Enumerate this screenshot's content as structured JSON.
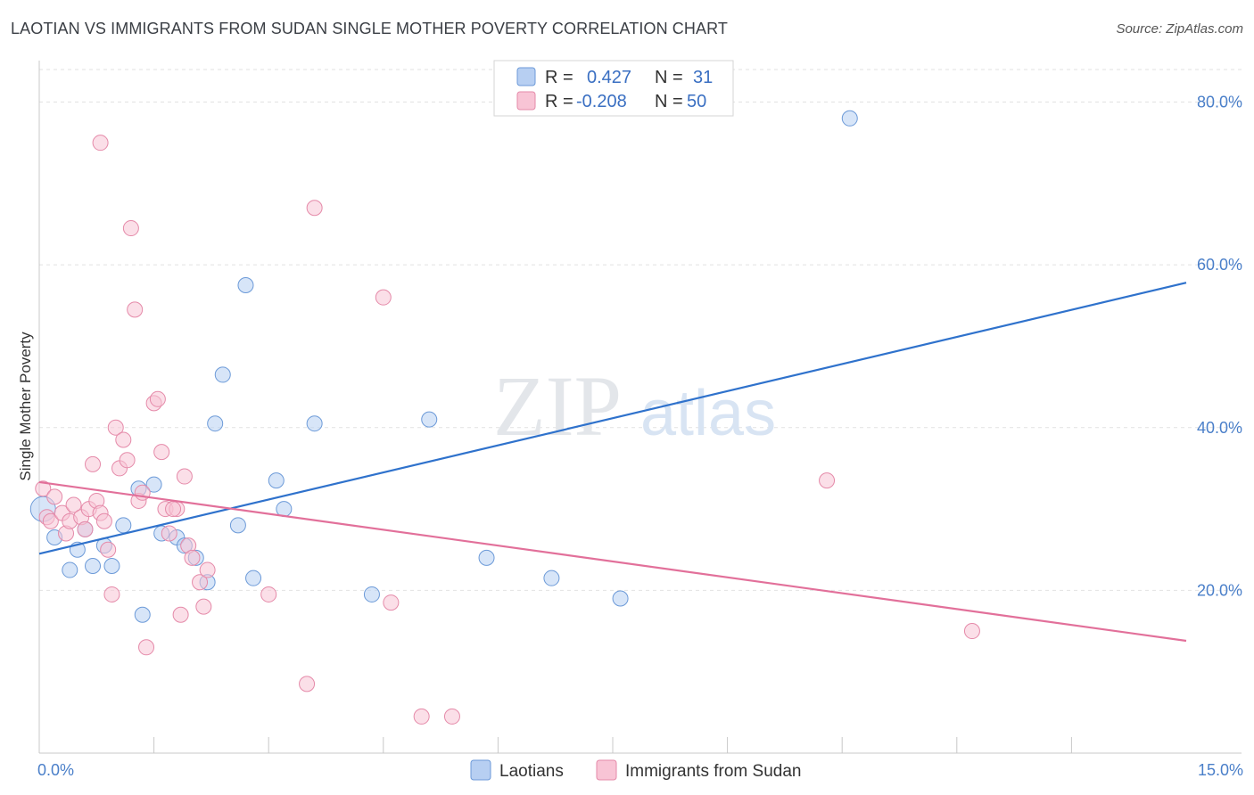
{
  "title": "LAOTIAN VS IMMIGRANTS FROM SUDAN SINGLE MOTHER POVERTY CORRELATION CHART",
  "source": "Source: ZipAtlas.com",
  "watermark": {
    "zip": "ZIP",
    "atlas": "atlas"
  },
  "legend": {
    "r_label": "R =",
    "n_label": "N =",
    "series": [
      {
        "r": "0.427",
        "n": "31",
        "color": "#b7cff2",
        "edge": "#6c9ad8"
      },
      {
        "r": "-0.208",
        "n": "50",
        "color": "#f8c4d5",
        "edge": "#e58aa9"
      }
    ]
  },
  "chart_data": {
    "type": "scatter",
    "title": "LAOTIAN VS IMMIGRANTS FROM SUDAN SINGLE MOTHER POVERTY CORRELATION CHART",
    "xlabel": "",
    "ylabel": "Single Mother Poverty",
    "xlim": [
      0,
      15
    ],
    "ylim": [
      0,
      84
    ],
    "x_tick_labels": [
      {
        "value": 0,
        "label": "0.0%"
      },
      {
        "value": 15,
        "label": "15.0%"
      }
    ],
    "y_tick_labels": [
      {
        "value": 20,
        "label": "20.0%"
      },
      {
        "value": 40,
        "label": "40.0%"
      },
      {
        "value": 60,
        "label": "60.0%"
      },
      {
        "value": 80,
        "label": "80.0%"
      }
    ],
    "x_minor_ticks": [
      1.5,
      3,
      4.5,
      6,
      7.5,
      9,
      10.5,
      12,
      13.5
    ],
    "grid": true,
    "legend_position": "top-center",
    "series": [
      {
        "name": "Laotians",
        "color": "#b7cff2",
        "edge": "#6c9ad8",
        "line_color": "#2f72cc",
        "trend": {
          "x": [
            0,
            15
          ],
          "y": [
            24.5,
            57.8
          ]
        },
        "points": [
          {
            "x": 0.05,
            "y": 30.0,
            "s": 28
          },
          {
            "x": 0.2,
            "y": 26.5
          },
          {
            "x": 0.4,
            "y": 22.5
          },
          {
            "x": 0.5,
            "y": 25.0
          },
          {
            "x": 0.6,
            "y": 27.5
          },
          {
            "x": 0.7,
            "y": 23.0
          },
          {
            "x": 0.85,
            "y": 25.5
          },
          {
            "x": 0.95,
            "y": 23.0
          },
          {
            "x": 1.1,
            "y": 28.0
          },
          {
            "x": 1.3,
            "y": 32.5
          },
          {
            "x": 1.35,
            "y": 17.0
          },
          {
            "x": 1.5,
            "y": 33.0
          },
          {
            "x": 1.6,
            "y": 27.0
          },
          {
            "x": 1.8,
            "y": 26.5
          },
          {
            "x": 1.9,
            "y": 25.5
          },
          {
            "x": 2.05,
            "y": 24.0
          },
          {
            "x": 2.2,
            "y": 21.0
          },
          {
            "x": 2.3,
            "y": 40.5
          },
          {
            "x": 2.4,
            "y": 46.5
          },
          {
            "x": 2.6,
            "y": 28.0
          },
          {
            "x": 2.7,
            "y": 57.5
          },
          {
            "x": 2.8,
            "y": 21.5
          },
          {
            "x": 3.1,
            "y": 33.5
          },
          {
            "x": 3.2,
            "y": 30.0
          },
          {
            "x": 3.6,
            "y": 40.5
          },
          {
            "x": 4.35,
            "y": 19.5
          },
          {
            "x": 5.1,
            "y": 41.0
          },
          {
            "x": 5.85,
            "y": 24.0
          },
          {
            "x": 6.7,
            "y": 21.5
          },
          {
            "x": 7.6,
            "y": 19.0
          },
          {
            "x": 10.6,
            "y": 78.0
          }
        ]
      },
      {
        "name": "Immigrants from Sudan",
        "color": "#f8c4d5",
        "edge": "#e58aa9",
        "line_color": "#e2709a",
        "trend": {
          "x": [
            0,
            15
          ],
          "y": [
            33.3,
            13.8
          ]
        },
        "points": [
          {
            "x": 0.05,
            "y": 32.5
          },
          {
            "x": 0.1,
            "y": 29.0
          },
          {
            "x": 0.15,
            "y": 28.5
          },
          {
            "x": 0.2,
            "y": 31.5
          },
          {
            "x": 0.3,
            "y": 29.5
          },
          {
            "x": 0.35,
            "y": 27.0
          },
          {
            "x": 0.4,
            "y": 28.5
          },
          {
            "x": 0.45,
            "y": 30.5
          },
          {
            "x": 0.55,
            "y": 29.0
          },
          {
            "x": 0.6,
            "y": 27.5
          },
          {
            "x": 0.65,
            "y": 30.0
          },
          {
            "x": 0.7,
            "y": 35.5
          },
          {
            "x": 0.75,
            "y": 31.0
          },
          {
            "x": 0.8,
            "y": 29.5
          },
          {
            "x": 0.85,
            "y": 28.5
          },
          {
            "x": 0.9,
            "y": 25.0
          },
          {
            "x": 0.95,
            "y": 19.5
          },
          {
            "x": 1.0,
            "y": 40.0
          },
          {
            "x": 1.05,
            "y": 35.0
          },
          {
            "x": 1.1,
            "y": 38.5
          },
          {
            "x": 1.15,
            "y": 36.0
          },
          {
            "x": 1.25,
            "y": 54.5
          },
          {
            "x": 1.3,
            "y": 31.0
          },
          {
            "x": 1.35,
            "y": 32.0
          },
          {
            "x": 1.4,
            "y": 13.0
          },
          {
            "x": 1.5,
            "y": 43.0
          },
          {
            "x": 1.55,
            "y": 43.5
          },
          {
            "x": 1.6,
            "y": 37.0
          },
          {
            "x": 1.65,
            "y": 30.0
          },
          {
            "x": 1.7,
            "y": 27.0
          },
          {
            "x": 1.8,
            "y": 30.0
          },
          {
            "x": 1.85,
            "y": 17.0
          },
          {
            "x": 1.9,
            "y": 34.0
          },
          {
            "x": 1.95,
            "y": 25.5
          },
          {
            "x": 2.0,
            "y": 24.0
          },
          {
            "x": 2.1,
            "y": 21.0
          },
          {
            "x": 2.15,
            "y": 18.0
          },
          {
            "x": 2.2,
            "y": 22.5
          },
          {
            "x": 3.0,
            "y": 19.5
          },
          {
            "x": 3.5,
            "y": 8.5
          },
          {
            "x": 3.6,
            "y": 67.0
          },
          {
            "x": 4.5,
            "y": 56.0
          },
          {
            "x": 4.6,
            "y": 18.5
          },
          {
            "x": 5.0,
            "y": 4.5
          },
          {
            "x": 5.4,
            "y": 4.5
          },
          {
            "x": 1.2,
            "y": 64.5
          },
          {
            "x": 0.8,
            "y": 75.0
          },
          {
            "x": 10.3,
            "y": 33.5
          },
          {
            "x": 12.2,
            "y": 15.0
          },
          {
            "x": 1.75,
            "y": 30.0
          }
        ]
      }
    ]
  }
}
